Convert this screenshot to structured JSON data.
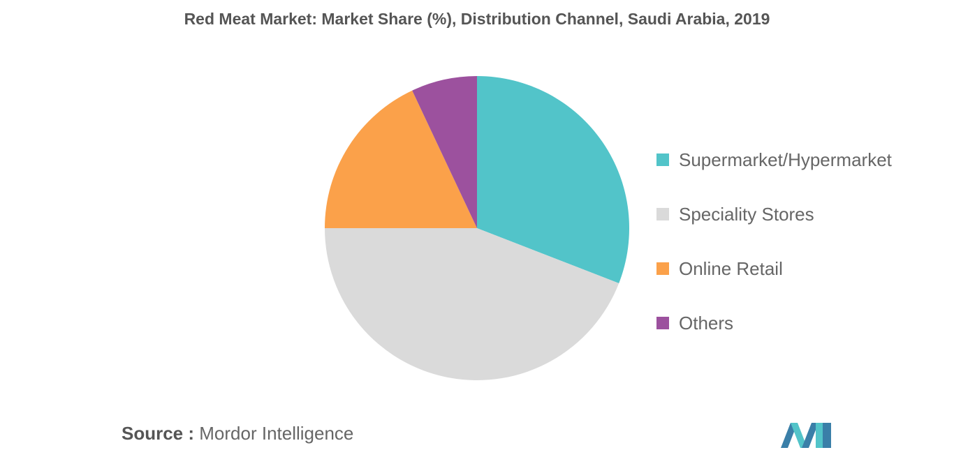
{
  "chart_data": {
    "type": "pie",
    "title": "Red Meat Market: Market Share (%), Distribution Channel, Saudi Arabia, 2019",
    "slices": [
      {
        "label": "Supermarket/Hypermarket",
        "value": 30.9,
        "color": "#52c4c9"
      },
      {
        "label": "Speciality Stores",
        "value": 44.1,
        "color": "#dadada"
      },
      {
        "label": "Online Retail",
        "value": 18.0,
        "color": "#fba14a"
      },
      {
        "label": "Others",
        "value": 7.0,
        "color": "#9c519e"
      }
    ],
    "legend_position": "right"
  },
  "source": {
    "prefix": "Source :",
    "text": "Mordor Intelligence"
  },
  "logo": {
    "icon": "mordor-intelligence-logo",
    "colors": [
      "#3a7fa8",
      "#52c4c9"
    ]
  }
}
